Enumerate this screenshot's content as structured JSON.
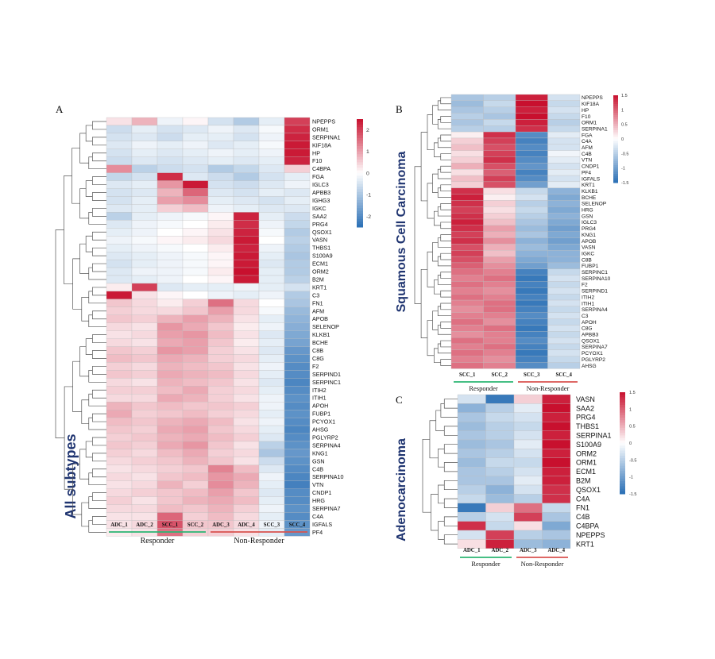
{
  "chart_data": [
    {
      "panel_label": "A",
      "type": "heatmap",
      "side_title": "All subtypes",
      "columns": [
        "ADC_1",
        "ADC_2",
        "SCC_1",
        "SCC_2",
        "ADC_3",
        "ADC_4",
        "SCC_3",
        "SCC_4"
      ],
      "groups": [
        {
          "name": "Responder",
          "color": "#2bb673"
        },
        {
          "name": "Non-Responder",
          "color": "#d9534f"
        }
      ],
      "color_scale": {
        "ticks": [
          "2",
          "1",
          "0",
          "-1",
          "-2"
        ],
        "max": 2.5,
        "min": -2.5,
        "colors": [
          "#2a6fb5",
          "#ffffff",
          "#c8102e"
        ]
      },
      "rows": [
        "NPEPPS",
        "ORM1",
        "SERPINA1",
        "KIF18A",
        "HP",
        "F10",
        "C4BPA",
        "FGA",
        "IGLC3",
        "APBB3",
        "IGHG3",
        "IGKC",
        "SAA2",
        "PRG4",
        "QSOX1",
        "VASN",
        "THBS1",
        "S100A9",
        "ECM1",
        "ORM2",
        "B2M",
        "KRT1",
        "C3",
        "FN1",
        "AFM",
        "APOB",
        "SELENOP",
        "KLKB1",
        "BCHE",
        "C8B",
        "C8G",
        "F2",
        "SERPIND1",
        "SERPINC1",
        "ITIH2",
        "ITIH1",
        "APOH",
        "FUBP1",
        "PCYOX1",
        "AHSG",
        "PGLYRP2",
        "SERPINA4",
        "KNG1",
        "GSN",
        "C4B",
        "SERPINA10",
        "VTN",
        "CNDP1",
        "HRG",
        "SERPINA7",
        "C4A",
        "IGFALS",
        "PF4"
      ],
      "values": [
        [
          0.3,
          0.8,
          -0.2,
          0.1,
          -0.5,
          -0.9,
          -0.3,
          2.0
        ],
        [
          -0.6,
          -0.3,
          -0.5,
          -0.4,
          -0.2,
          -0.4,
          -0.1,
          2.2
        ],
        [
          -0.5,
          -0.4,
          -0.6,
          -0.3,
          -0.3,
          -0.5,
          -0.2,
          2.3
        ],
        [
          -0.4,
          -0.2,
          -0.3,
          -0.2,
          -0.4,
          -0.3,
          -0.1,
          2.4
        ],
        [
          -0.5,
          -0.3,
          -0.4,
          -0.3,
          -0.2,
          -0.3,
          -0.2,
          2.4
        ],
        [
          -0.6,
          -0.4,
          -0.5,
          -0.4,
          -0.3,
          -0.4,
          -0.3,
          2.3
        ],
        [
          1.2,
          -0.8,
          -0.6,
          -0.5,
          -0.9,
          -0.7,
          -0.4,
          0.5
        ],
        [
          -0.7,
          -0.5,
          2.2,
          -0.4,
          -0.6,
          -0.9,
          -0.5,
          -0.3
        ],
        [
          -0.4,
          -0.3,
          1.1,
          2.4,
          -0.5,
          -0.6,
          -0.4,
          -0.2
        ],
        [
          -0.5,
          -0.4,
          0.8,
          1.6,
          -0.4,
          -0.5,
          -0.3,
          -0.4
        ],
        [
          -0.5,
          -0.3,
          1.0,
          1.2,
          -0.3,
          -0.4,
          -0.5,
          -0.3
        ],
        [
          -0.4,
          -0.3,
          0.5,
          0.7,
          -0.2,
          -0.3,
          -0.4,
          -0.4
        ],
        [
          -0.8,
          -0.3,
          -0.2,
          -0.1,
          0.1,
          2.3,
          -0.3,
          -0.6
        ],
        [
          -0.4,
          -0.2,
          -0.1,
          0.0,
          0.2,
          2.2,
          -0.2,
          -0.7
        ],
        [
          -0.3,
          -0.2,
          0.0,
          0.1,
          0.3,
          2.3,
          -0.1,
          -0.9
        ],
        [
          -0.2,
          -0.1,
          0.1,
          0.2,
          0.4,
          2.4,
          0.0,
          -0.8
        ],
        [
          -0.3,
          -0.2,
          -0.1,
          0.0,
          0.2,
          2.3,
          -0.2,
          -0.9
        ],
        [
          -0.4,
          -0.3,
          -0.2,
          -0.1,
          0.1,
          2.4,
          -0.3,
          -1.0
        ],
        [
          -0.5,
          -0.3,
          -0.2,
          -0.1,
          0.1,
          2.4,
          -0.4,
          -0.9
        ],
        [
          -0.4,
          -0.2,
          -0.2,
          -0.1,
          0.2,
          2.5,
          -0.3,
          -0.9
        ],
        [
          -0.4,
          -0.3,
          -0.2,
          0.0,
          0.1,
          2.4,
          -0.3,
          -0.8
        ],
        [
          0.2,
          2.0,
          -0.4,
          -0.3,
          -0.3,
          -0.2,
          -0.3,
          -0.5
        ],
        [
          2.4,
          0.3,
          0.1,
          0.0,
          -0.2,
          -0.3,
          -0.2,
          -0.9
        ],
        [
          0.6,
          0.4,
          0.2,
          0.5,
          1.5,
          0.4,
          0.0,
          -1.0
        ],
        [
          0.5,
          0.4,
          0.4,
          0.6,
          1.0,
          0.4,
          -0.1,
          -1.2
        ],
        [
          0.6,
          0.5,
          0.8,
          1.0,
          0.8,
          0.3,
          -0.3,
          -1.3
        ],
        [
          0.4,
          0.3,
          1.1,
          0.9,
          0.6,
          0.2,
          -0.2,
          -1.4
        ],
        [
          0.3,
          0.4,
          1.0,
          1.1,
          0.7,
          0.3,
          -0.4,
          -1.5
        ],
        [
          0.4,
          0.3,
          0.9,
          1.0,
          0.6,
          0.2,
          -0.3,
          -1.6
        ],
        [
          0.6,
          0.5,
          1.1,
          1.0,
          0.5,
          0.3,
          -0.4,
          -1.8
        ],
        [
          0.7,
          0.6,
          0.9,
          0.8,
          0.5,
          0.4,
          -0.3,
          -1.9
        ],
        [
          0.5,
          0.4,
          0.8,
          0.7,
          0.6,
          0.3,
          -0.2,
          -2.0
        ],
        [
          0.6,
          0.5,
          0.9,
          0.8,
          0.7,
          0.4,
          -0.3,
          -2.0
        ],
        [
          0.4,
          0.3,
          0.8,
          0.7,
          0.6,
          0.3,
          -0.4,
          -2.1
        ],
        [
          0.5,
          0.5,
          0.7,
          0.9,
          0.5,
          0.4,
          -0.3,
          -2.0
        ],
        [
          0.4,
          0.4,
          0.9,
          0.8,
          0.5,
          0.3,
          -0.2,
          -1.9
        ],
        [
          0.8,
          0.6,
          0.7,
          0.6,
          0.6,
          0.5,
          -0.2,
          -2.0
        ],
        [
          0.9,
          0.5,
          0.6,
          0.7,
          0.5,
          0.4,
          -0.3,
          -1.9
        ],
        [
          0.7,
          0.6,
          0.8,
          0.9,
          0.7,
          0.3,
          -0.2,
          -2.0
        ],
        [
          0.6,
          0.5,
          0.9,
          1.0,
          0.6,
          0.4,
          -0.3,
          -2.1
        ],
        [
          0.5,
          0.6,
          0.8,
          0.9,
          0.7,
          0.5,
          -0.4,
          -2.0
        ],
        [
          0.6,
          0.5,
          0.9,
          1.1,
          0.6,
          0.3,
          -0.8,
          -1.9
        ],
        [
          0.5,
          0.4,
          0.7,
          0.9,
          0.5,
          0.4,
          -1.0,
          -1.8
        ],
        [
          0.4,
          0.5,
          0.6,
          0.8,
          0.6,
          0.3,
          -0.6,
          -1.9
        ],
        [
          0.3,
          0.4,
          0.5,
          0.6,
          1.3,
          0.7,
          -0.4,
          -2.0
        ],
        [
          0.4,
          0.3,
          0.6,
          0.7,
          1.1,
          0.9,
          -0.2,
          -2.1
        ],
        [
          0.3,
          0.4,
          0.8,
          0.5,
          1.2,
          0.8,
          -0.3,
          -2.2
        ],
        [
          0.4,
          0.5,
          0.6,
          0.7,
          1.0,
          0.6,
          -0.4,
          -2.0
        ],
        [
          0.5,
          0.3,
          0.6,
          0.8,
          0.9,
          0.7,
          -0.3,
          -2.0
        ],
        [
          0.4,
          0.4,
          0.7,
          0.6,
          0.8,
          0.5,
          -0.2,
          -1.9
        ],
        [
          0.3,
          0.3,
          1.6,
          0.5,
          0.7,
          0.4,
          -0.3,
          -2.0
        ],
        [
          0.3,
          0.4,
          1.8,
          0.6,
          0.6,
          0.4,
          -0.2,
          -1.9
        ],
        [
          0.2,
          0.3,
          1.5,
          0.5,
          0.5,
          0.3,
          -0.3,
          -1.8
        ]
      ]
    },
    {
      "panel_label": "B",
      "type": "heatmap",
      "side_title": "Squamous Cell Carcinoma",
      "columns": [
        "SCC_1",
        "SCC_2",
        "SCC_3",
        "SCC_4"
      ],
      "groups": [
        {
          "name": "Responder",
          "color": "#2bb673"
        },
        {
          "name": "Non-Responder",
          "color": "#d9534f"
        }
      ],
      "color_scale": {
        "ticks": [
          "1.5",
          "1",
          "0.5",
          "0",
          "-0.5",
          "-1",
          "-1.5"
        ],
        "max": 1.5,
        "min": -1.5,
        "colors": [
          "#2a6fb5",
          "#ffffff",
          "#c8102e"
        ]
      },
      "rows": [
        "NPEPPS",
        "KIF18A",
        "HP",
        "F10",
        "ORM1",
        "SERPINA1",
        "FGA",
        "C4A",
        "AFM",
        "C4B",
        "VTN",
        "CNDP1",
        "PF4",
        "IGFALS",
        "KRT1",
        "KLKB1",
        "BCHE",
        "SELENOP",
        "HRG",
        "GSN",
        "IGLC3",
        "PRG4",
        "KNG1",
        "APOB",
        "VASN",
        "IGKC",
        "C8B",
        "FUBP1",
        "SERPINC1",
        "SERPINA10",
        "F2",
        "SERPIND1",
        "ITIH2",
        "ITIH1",
        "SERPINA4",
        "C3",
        "APOH",
        "C8G",
        "APBB3",
        "QSOX1",
        "SERPINA7",
        "PCYOX1",
        "PGLYRP2",
        "AHSG"
      ],
      "values": [
        [
          -0.6,
          -0.5,
          1.4,
          -0.3
        ],
        [
          -0.7,
          -0.4,
          1.5,
          -0.4
        ],
        [
          -0.6,
          -0.5,
          1.4,
          -0.3
        ],
        [
          -0.5,
          -0.6,
          1.5,
          -0.4
        ],
        [
          -0.6,
          -0.4,
          1.4,
          -0.5
        ],
        [
          -0.5,
          -0.5,
          1.3,
          -0.4
        ],
        [
          0.1,
          1.3,
          -1.2,
          -0.2
        ],
        [
          0.3,
          1.2,
          -1.3,
          -0.3
        ],
        [
          0.4,
          1.1,
          -1.2,
          -0.3
        ],
        [
          0.2,
          1.2,
          -1.3,
          -0.1
        ],
        [
          0.3,
          1.3,
          -1.2,
          -0.2
        ],
        [
          0.5,
          1.1,
          -1.1,
          -0.3
        ],
        [
          0.2,
          1.0,
          -1.3,
          -0.2
        ],
        [
          0.4,
          1.2,
          -1.2,
          -0.3
        ],
        [
          0.3,
          1.1,
          -1.0,
          -0.2
        ],
        [
          1.3,
          0.2,
          -0.4,
          -0.8
        ],
        [
          1.4,
          0.1,
          -0.3,
          -0.9
        ],
        [
          1.3,
          0.3,
          -0.5,
          -0.8
        ],
        [
          1.2,
          0.2,
          -0.4,
          -0.9
        ],
        [
          1.3,
          0.3,
          -0.5,
          -0.8
        ],
        [
          1.4,
          0.4,
          -0.6,
          -0.9
        ],
        [
          1.3,
          0.6,
          -0.7,
          -1.0
        ],
        [
          1.2,
          0.5,
          -0.6,
          -0.9
        ],
        [
          1.3,
          0.7,
          -0.8,
          -1.0
        ],
        [
          1.1,
          0.5,
          -0.7,
          -0.9
        ],
        [
          1.2,
          0.4,
          -0.8,
          -0.8
        ],
        [
          1.1,
          0.6,
          -0.9,
          -0.8
        ],
        [
          1.0,
          0.7,
          -1.0,
          -0.7
        ],
        [
          0.9,
          0.8,
          -1.3,
          -0.4
        ],
        [
          0.8,
          0.9,
          -1.4,
          -0.3
        ],
        [
          0.9,
          0.8,
          -1.3,
          -0.4
        ],
        [
          0.8,
          0.7,
          -1.4,
          -0.3
        ],
        [
          0.9,
          0.8,
          -1.3,
          -0.4
        ],
        [
          0.8,
          0.9,
          -1.4,
          -0.3
        ],
        [
          0.7,
          0.9,
          -1.3,
          -0.4
        ],
        [
          0.8,
          0.8,
          -1.2,
          -0.3
        ],
        [
          0.9,
          0.7,
          -1.3,
          -0.4
        ],
        [
          0.8,
          0.9,
          -1.4,
          -0.3
        ],
        [
          0.7,
          0.8,
          -1.3,
          -0.4
        ],
        [
          0.9,
          0.8,
          -1.2,
          -0.3
        ],
        [
          0.8,
          0.9,
          -1.3,
          -0.4
        ],
        [
          0.9,
          0.8,
          -1.4,
          -0.3
        ],
        [
          0.8,
          0.7,
          -1.3,
          -0.4
        ],
        [
          0.9,
          0.8,
          -1.2,
          -0.5
        ]
      ]
    },
    {
      "panel_label": "C",
      "type": "heatmap",
      "side_title": "Adenocarcinoma",
      "columns": [
        "ADC_1",
        "ADC_2",
        "ADC_3",
        "ADC_4"
      ],
      "groups": [
        {
          "name": "Responder",
          "color": "#2bb673"
        },
        {
          "name": "Non-Responder",
          "color": "#d9534f"
        }
      ],
      "color_scale": {
        "ticks": [
          "1.5",
          "1",
          "0.5",
          "0",
          "-0.5",
          "-1",
          "-1.5"
        ],
        "max": 1.5,
        "min": -1.5,
        "colors": [
          "#2a6fb5",
          "#ffffff",
          "#c8102e"
        ]
      },
      "rows": [
        "VASN",
        "SAA2",
        "PRG4",
        "THBS1",
        "SERPINA1",
        "S100A9",
        "ORM2",
        "ORM1",
        "ECM1",
        "B2M",
        "QSOX1",
        "C4A",
        "FN1",
        "C4B",
        "C4BPA",
        "NPEPPS",
        "KRT1"
      ],
      "values": [
        [
          -0.3,
          -1.4,
          0.3,
          1.4
        ],
        [
          -0.8,
          -0.5,
          -0.2,
          1.5
        ],
        [
          -0.6,
          -0.4,
          -0.3,
          1.4
        ],
        [
          -0.7,
          -0.5,
          -0.4,
          1.5
        ],
        [
          -0.6,
          -0.5,
          -0.3,
          1.4
        ],
        [
          -0.7,
          -0.6,
          -0.2,
          1.5
        ],
        [
          -0.6,
          -0.5,
          -0.3,
          1.4
        ],
        [
          -0.7,
          -0.4,
          -0.4,
          1.5
        ],
        [
          -0.6,
          -0.5,
          -0.3,
          1.4
        ],
        [
          -0.6,
          -0.6,
          -0.2,
          1.4
        ],
        [
          -0.5,
          -0.8,
          -0.3,
          1.3
        ],
        [
          -0.4,
          -0.7,
          -0.5,
          1.3
        ],
        [
          -1.4,
          0.3,
          0.9,
          -0.4
        ],
        [
          -0.5,
          -0.3,
          1.2,
          -0.6
        ],
        [
          1.3,
          -0.4,
          0.2,
          -0.9
        ],
        [
          -0.3,
          1.2,
          -0.5,
          -0.6
        ],
        [
          0.2,
          1.4,
          -0.7,
          -0.8
        ]
      ]
    }
  ]
}
